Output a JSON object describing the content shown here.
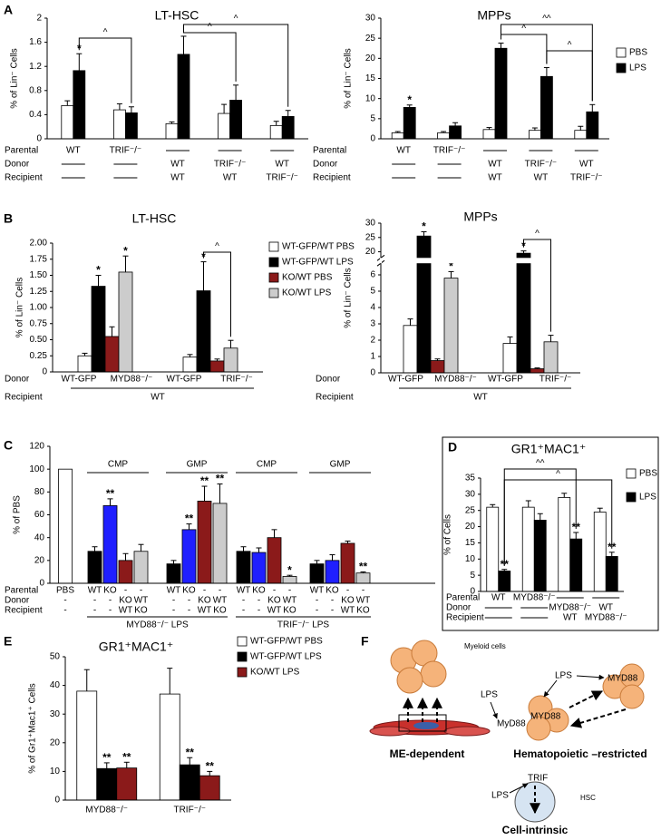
{
  "chart_data": [
    {
      "type": "bar",
      "panel": "A",
      "title": "LT-HSC",
      "ylabel": "% of Lin⁻ Cells",
      "ylim": [
        0,
        2
      ],
      "yticks": [
        0,
        0.4,
        0.8,
        1.2,
        1.6,
        2
      ],
      "series": [
        {
          "color": "#ffffff",
          "values": [
            0.55,
            0.48,
            0.25,
            0.42,
            0.22
          ],
          "errors": [
            0.08,
            0.1,
            0.03,
            0.15,
            0.07
          ]
        },
        {
          "color": "#000000",
          "values": [
            1.13,
            0.43,
            1.4,
            0.64,
            0.37
          ],
          "errors": [
            0.28,
            0.1,
            0.3,
            0.25,
            0.1
          ],
          "markers": [
            "*",
            null,
            null,
            null,
            null
          ]
        }
      ],
      "annotations": [
        "^",
        "^",
        "^"
      ],
      "rows": [
        {
          "label": "Parental",
          "cells": [
            "WT",
            "TRIF⁻/⁻",
            null,
            null,
            null
          ]
        },
        {
          "label": "Donor",
          "cells": [
            null,
            null,
            "WT",
            "TRIF⁻/⁻",
            "WT"
          ]
        },
        {
          "label": "Recipient",
          "cells": [
            null,
            null,
            "WT",
            "WT",
            "TRIF⁻/⁻"
          ]
        }
      ]
    },
    {
      "type": "bar",
      "title": "MPPs",
      "ylabel": "% of Lin⁻ Cells",
      "ylim": [
        0,
        30
      ],
      "yticks": [
        0,
        5,
        10,
        15,
        20,
        25,
        30
      ],
      "series": [
        {
          "name": "PBS",
          "color": "#ffffff",
          "values": [
            1.5,
            1.5,
            2.3,
            2.1,
            2.1
          ],
          "errors": [
            0.3,
            0.3,
            0.5,
            0.6,
            1.0
          ]
        },
        {
          "name": "LPS",
          "color": "#000000",
          "values": [
            7.8,
            3.2,
            22.5,
            15.5,
            6.7
          ],
          "errors": [
            0.6,
            0.8,
            1.3,
            2.2,
            1.8
          ],
          "markers": [
            "*",
            null,
            null,
            null,
            null
          ]
        }
      ],
      "annotations": [
        "^",
        "^^",
        "^"
      ],
      "rows": [
        {
          "label": "Parental",
          "cells": [
            "WT",
            "TRIF⁻/⁻",
            null,
            null,
            null
          ]
        },
        {
          "label": "Donor",
          "cells": [
            null,
            null,
            "WT",
            "TRIF⁻/⁻",
            "WT"
          ]
        },
        {
          "label": "Recipient",
          "cells": [
            null,
            null,
            "WT",
            "WT",
            "TRIF⁻/⁻"
          ]
        }
      ]
    },
    {
      "type": "bar",
      "panel": "B",
      "title": "LT-HSC",
      "ylabel": "% of Lin⁻ Cells",
      "ylim": [
        0,
        2
      ],
      "yticks": [
        0,
        0.25,
        {
          "value": 0.5,
          "label": "0.50"
        },
        0.75,
        {
          "value": 1,
          "label": "1.00"
        },
        1.25,
        {
          "value": 1.5,
          "label": "1.50"
        },
        1.75,
        {
          "value": 2,
          "label": "2.00"
        }
      ],
      "series": [
        {
          "name": "WT-GFP/WT PBS",
          "color": "#ffffff",
          "values": [
            0.25,
            0.23
          ],
          "errors": [
            0.04,
            0.04
          ]
        },
        {
          "name": "WT-GFP/WT LPS",
          "color": "#000000",
          "values": [
            1.33,
            1.26
          ],
          "errors": [
            0.17,
            0.45
          ],
          "markers": [
            "*",
            "*"
          ]
        },
        {
          "name": "KO/WT PBS",
          "color": "#8b1a1a",
          "values": [
            0.55,
            0.17
          ],
          "errors": [
            0.15,
            0.03
          ]
        },
        {
          "name": "KO/WT LPS",
          "color": "#cccccc",
          "values": [
            1.55,
            0.37
          ],
          "errors": [
            0.25,
            0.12
          ],
          "markers": [
            "*",
            null
          ]
        }
      ],
      "annotations": [
        "^"
      ],
      "rows": [
        {
          "label": "Donor",
          "cells": [
            "WT-GFP",
            "MYD88⁻/⁻",
            "WT-GFP",
            "TRIF⁻/⁻"
          ]
        },
        {
          "label": "Recipient",
          "cells": [
            "WT"
          ]
        }
      ]
    },
    {
      "type": "bar",
      "title": "MPPs",
      "ylabel": "% of Lin⁻ Cells",
      "ylim": [
        0,
        30
      ],
      "yticks": [
        0,
        1,
        2,
        3,
        4,
        5,
        6,
        20,
        25,
        30
      ],
      "series": [
        {
          "color": "#ffffff",
          "values": [
            2.9,
            1.8
          ],
          "errors": [
            0.4,
            0.4
          ]
        },
        {
          "color": "#000000",
          "values": [
            25.5,
            19.5
          ],
          "errors": [
            1.5,
            0.8
          ],
          "markers": [
            "*",
            "*"
          ]
        },
        {
          "color": "#8b1a1a",
          "values": [
            0.75,
            0.25
          ],
          "errors": [
            0.1,
            0.05
          ]
        },
        {
          "color": "#cccccc",
          "values": [
            5.8,
            1.9
          ],
          "errors": [
            0.4,
            0.4
          ],
          "markers": [
            "*",
            null
          ]
        }
      ],
      "annotations": [
        "^"
      ],
      "rows": [
        {
          "label": "Donor",
          "cells": [
            "WT-GFP",
            "MYD88⁻/⁻",
            "WT-GFP",
            "TRIF⁻/⁻"
          ]
        },
        {
          "label": "Recipient",
          "cells": [
            "WT"
          ]
        }
      ]
    },
    {
      "type": "bar",
      "panel": "C",
      "ylabel": "% of PBS",
      "ylim": [
        0,
        120
      ],
      "yticks": [
        0,
        20,
        40,
        60,
        80,
        100,
        120
      ],
      "categories": [
        null,
        "CMP",
        "GMP",
        "CMP",
        "GMP"
      ],
      "series": [
        {
          "color": "#ffffff",
          "values": [
            100,
            null,
            null,
            null,
            null
          ]
        },
        {
          "color": "#000000",
          "values": [
            null,
            28,
            17,
            28,
            17
          ],
          "errors": [
            null,
            4,
            3,
            4,
            3
          ]
        },
        {
          "color": "#1f1fff",
          "values": [
            null,
            68,
            47,
            27,
            20
          ],
          "errors": [
            null,
            6,
            5,
            4,
            5
          ],
          "markers": [
            null,
            "**",
            "**",
            null,
            null
          ]
        },
        {
          "color": "#8b1a1a",
          "values": [
            null,
            20,
            72,
            40,
            35
          ],
          "errors": [
            null,
            6,
            13,
            7,
            2
          ],
          "markers": [
            null,
            null,
            "**",
            null,
            null
          ]
        },
        {
          "color": "#cccccc",
          "values": [
            null,
            28,
            70,
            6,
            9
          ],
          "errors": [
            null,
            6,
            17,
            1,
            1
          ],
          "markers": [
            null,
            null,
            "**",
            "*",
            "**"
          ]
        }
      ],
      "rows": [
        {
          "label": "Parental",
          "cells": [
            "PBS",
            "WT",
            "KO",
            "-",
            "-",
            "WT",
            "KO",
            "-",
            "-",
            "WT",
            "KO",
            "-",
            "-",
            "WT",
            "KO",
            "-",
            "-"
          ]
        },
        {
          "label": "Donor",
          "cells": [
            "-",
            "-",
            "-",
            "KO",
            "WT",
            "-",
            "-",
            "KO",
            "WT",
            "-",
            "-",
            "KO",
            "WT",
            "-",
            "-",
            "KO",
            "WT"
          ]
        },
        {
          "label": "Recipient",
          "cells": [
            "-",
            "-",
            "-",
            "WT",
            "KO",
            "-",
            "-",
            "WT",
            "KO",
            "-",
            "-",
            "WT",
            "KO",
            "-",
            "-",
            "WT",
            "KO"
          ]
        }
      ],
      "footers": [
        "MYD88⁻/⁻  LPS",
        "TRIF⁻/⁻  LPS"
      ]
    },
    {
      "type": "bar",
      "panel": "D",
      "title": "GR1⁺MAC1⁺",
      "ylabel": "% of Cells",
      "ylim": [
        0,
        35
      ],
      "yticks": [
        0,
        5,
        10,
        15,
        20,
        25,
        30,
        35
      ],
      "series": [
        {
          "name": "PBS",
          "color": "#ffffff",
          "values": [
            26,
            26,
            29,
            24.5
          ],
          "errors": [
            0.8,
            2,
            1.3,
            1.2
          ]
        },
        {
          "name": "LPS",
          "color": "#000000",
          "values": [
            6.3,
            22,
            16.2,
            10.8
          ],
          "errors": [
            0.5,
            2,
            2,
            1.3
          ],
          "markers": [
            "**",
            null,
            "**",
            "**"
          ]
        }
      ],
      "annotations": [
        "^^",
        "^"
      ],
      "rows": [
        {
          "label": "Parental",
          "cells": [
            "WT",
            "MYD88⁻/⁻",
            null,
            null
          ]
        },
        {
          "label": "Donor",
          "cells": [
            null,
            null,
            "MYD88⁻/⁻",
            "WT"
          ]
        },
        {
          "label": "Recipient",
          "cells": [
            null,
            null,
            "WT",
            "MYD88⁻/⁻"
          ]
        }
      ]
    },
    {
      "type": "bar",
      "panel": "E",
      "title": "GR1⁺MAC1⁺",
      "ylabel": "% of Gr1⁺Mac1⁺ Cells",
      "ylim": [
        0,
        50
      ],
      "yticks": [
        0,
        10,
        20,
        30,
        40,
        50
      ],
      "categories": [
        "MYD88⁻/⁻",
        "TRIF⁻/⁻"
      ],
      "series": [
        {
          "name": "WT-GFP/WT PBS",
          "color": "#ffffff",
          "values": [
            38,
            37
          ],
          "errors": [
            7.5,
            9
          ]
        },
        {
          "name": "WT-GFP/WT LPS",
          "color": "#000000",
          "values": [
            11,
            12.3
          ],
          "errors": [
            2,
            2.5
          ],
          "markers": [
            "**",
            "**"
          ]
        },
        {
          "name": "KO/WT LPS",
          "color": "#8b1a1a",
          "values": [
            11.2,
            8.5
          ],
          "errors": [
            2,
            1.5
          ],
          "markers": [
            "**",
            "**"
          ]
        }
      ]
    }
  ],
  "diagram": {
    "panel": "F",
    "labels": [
      "Myeloid cells",
      "LPS",
      "MyD88",
      "ME-dependent",
      "LPS",
      "MYD88",
      "MYD88",
      "Hematopoietic –restricted",
      "LPS",
      "TRIF",
      "HSC",
      "Cell-intrinsic"
    ]
  }
}
